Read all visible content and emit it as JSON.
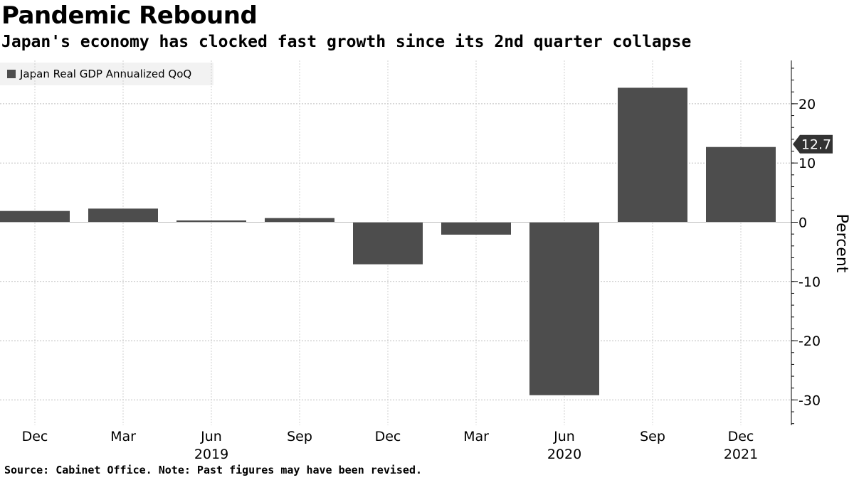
{
  "title": "Pandemic Rebound",
  "subtitle": "Japan's economy has clocked fast growth since its 2nd quarter collapse",
  "footer": "Source: Cabinet Office. Note: Past figures may have been revised.",
  "chart_data": {
    "type": "bar",
    "title": "Pandemic Rebound",
    "subtitle": "Japan's economy has clocked fast growth since its 2nd quarter collapse",
    "categories": [
      "Dec",
      "Mar",
      "Jun",
      "Sep",
      "Dec",
      "Mar",
      "Jun",
      "Sep",
      "Dec"
    ],
    "year_labels": [
      {
        "category_index": 2,
        "label": "2019"
      },
      {
        "category_index": 6,
        "label": "2020"
      },
      {
        "category_index": 8,
        "label": "2021"
      }
    ],
    "series": [
      {
        "name": "Japan Real GDP Annualized QoQ",
        "color": "#4d4d4d",
        "values": [
          1.9,
          2.3,
          0.3,
          0.7,
          -7.1,
          -2.1,
          -29.2,
          22.7,
          12.7
        ]
      }
    ],
    "ylabel": "Percent",
    "xlabel": "",
    "ylim": [
      -34,
      27
    ],
    "yticks": [
      -30,
      -20,
      -10,
      0,
      10,
      20
    ],
    "grid": true,
    "legend_position": "top-left",
    "y_axis_side": "right",
    "last_value_callout": "12.7"
  }
}
